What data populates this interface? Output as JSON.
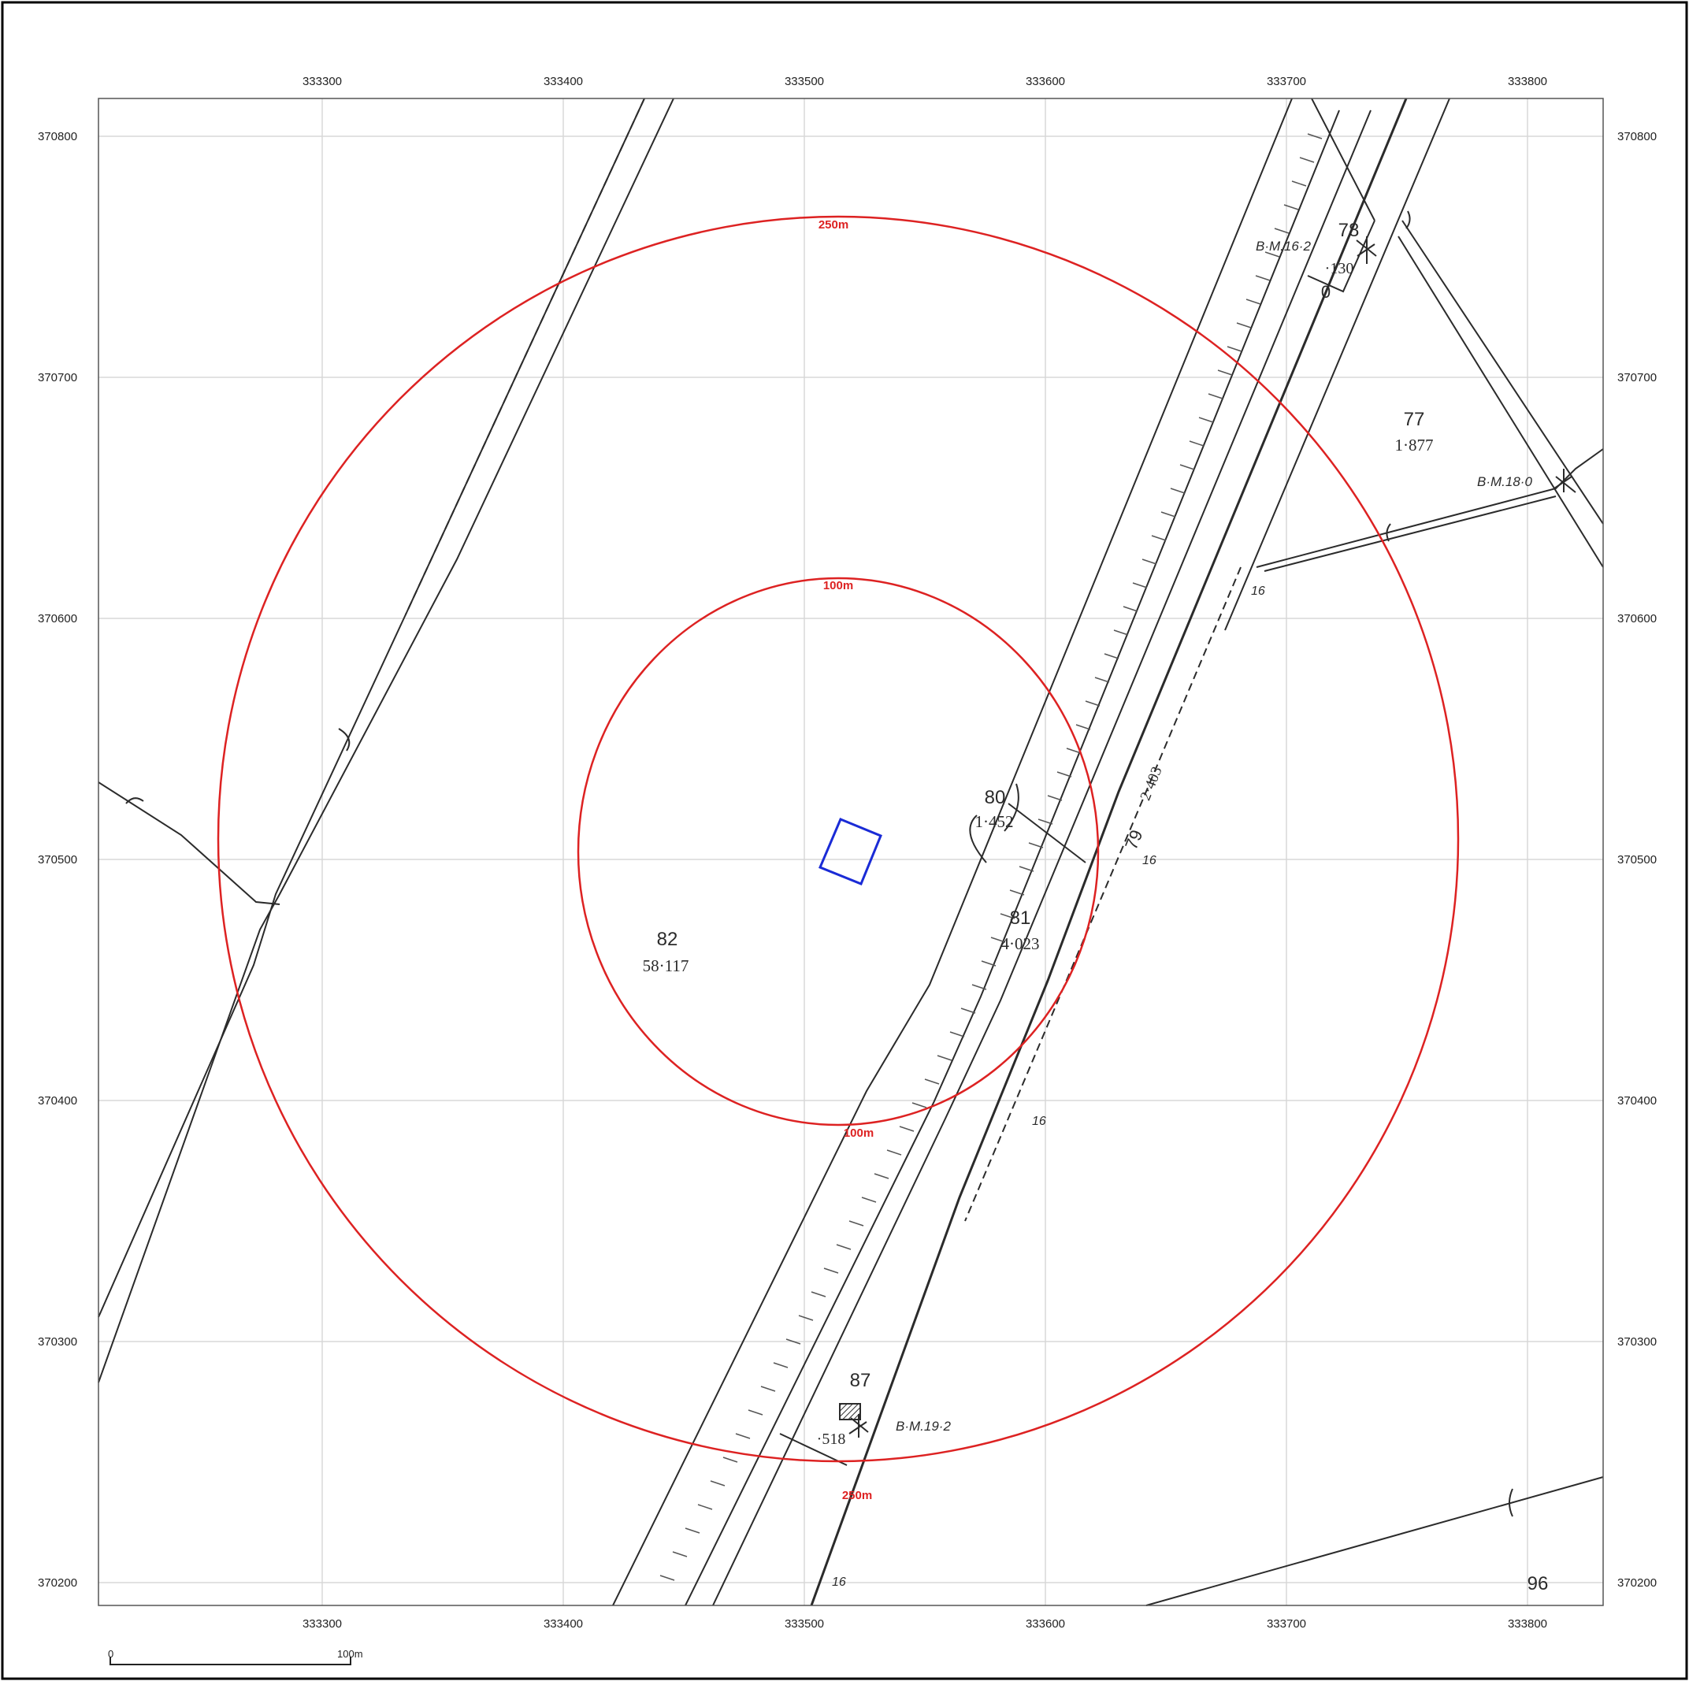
{
  "map": {
    "frame_color": "#000000",
    "grid_color": "#d8d8d8",
    "line_color": "#2b2b2b",
    "buffer_color": "#dd2222",
    "site_color": "#1a2bd6",
    "x_ticks": [
      "333300",
      "333400",
      "333500",
      "333600",
      "333700",
      "333800"
    ],
    "y_ticks": [
      "370800",
      "370700",
      "370600",
      "370500",
      "370400",
      "370300",
      "370200"
    ],
    "buffers": [
      {
        "label": "250m",
        "label_bottom": "250m"
      },
      {
        "label": "100m",
        "label_bottom": "100m"
      }
    ],
    "parcels": [
      {
        "id": "82",
        "area": "58·117"
      },
      {
        "id": "80",
        "area": "1·452"
      },
      {
        "id": "81",
        "area": "4·023"
      },
      {
        "id": "77",
        "area": "1·877"
      },
      {
        "id": "78",
        "area": "·130"
      },
      {
        "id": "87",
        "area": "·518"
      },
      {
        "id": "96",
        "area": ""
      },
      {
        "id": "79",
        "area": "2·403"
      }
    ],
    "benchmarks": [
      "B·M.16·2",
      "B·M.18·0",
      "B·M.19·2"
    ],
    "spot_heights": [
      "16",
      "16",
      "16",
      "16"
    ],
    "misc_labels": [
      "0"
    ],
    "scale_bar": {
      "start": "0",
      "end": "100m"
    }
  }
}
